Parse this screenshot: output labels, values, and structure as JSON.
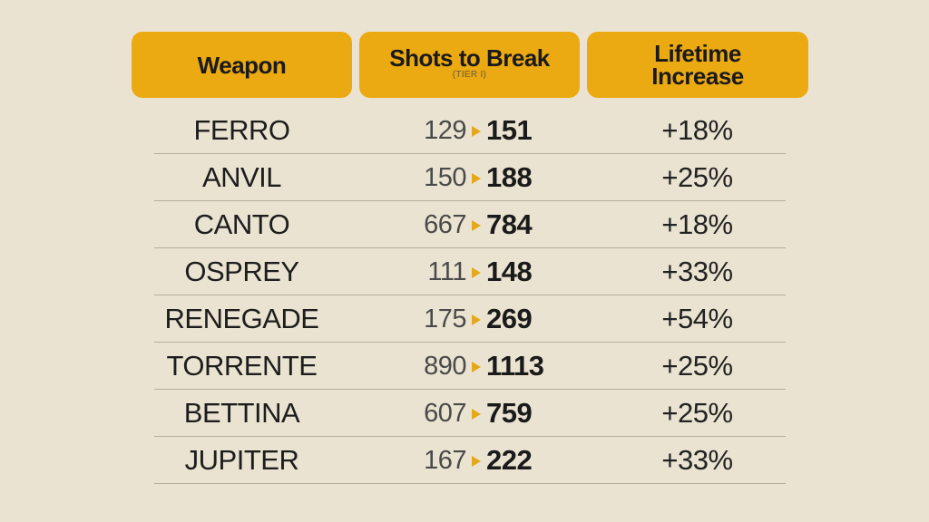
{
  "header": {
    "weapon": "Weapon",
    "shots": "Shots to Break",
    "shots_note": "(TIER I)",
    "lifetime_line1": "Lifetime",
    "lifetime_line2": "Increase"
  },
  "rows": [
    {
      "name": "FERRO",
      "old": "129",
      "new": "151",
      "pct": "+18%"
    },
    {
      "name": "ANVIL",
      "old": "150",
      "new": "188",
      "pct": "+25%"
    },
    {
      "name": "CANTO",
      "old": "667",
      "new": "784",
      "pct": "+18%"
    },
    {
      "name": "OSPREY",
      "old": "111",
      "new": "148",
      "pct": "+33%"
    },
    {
      "name": "RENEGADE",
      "old": "175",
      "new": "269",
      "pct": "+54%"
    },
    {
      "name": "TORRENTE",
      "old": "890",
      "new": "1113",
      "pct": "+25%"
    },
    {
      "name": "BETTINA",
      "old": "607",
      "new": "759",
      "pct": "+25%"
    },
    {
      "name": "JUPITER",
      "old": "167",
      "new": "222",
      "pct": "+33%"
    }
  ],
  "colors": {
    "background": "#ebe3d1",
    "header_fill": "#eba912",
    "arrow": "#e4a81a",
    "divider": "#b5ae9e"
  },
  "icons": {
    "arrow": "right-triangle-arrow-icon"
  }
}
